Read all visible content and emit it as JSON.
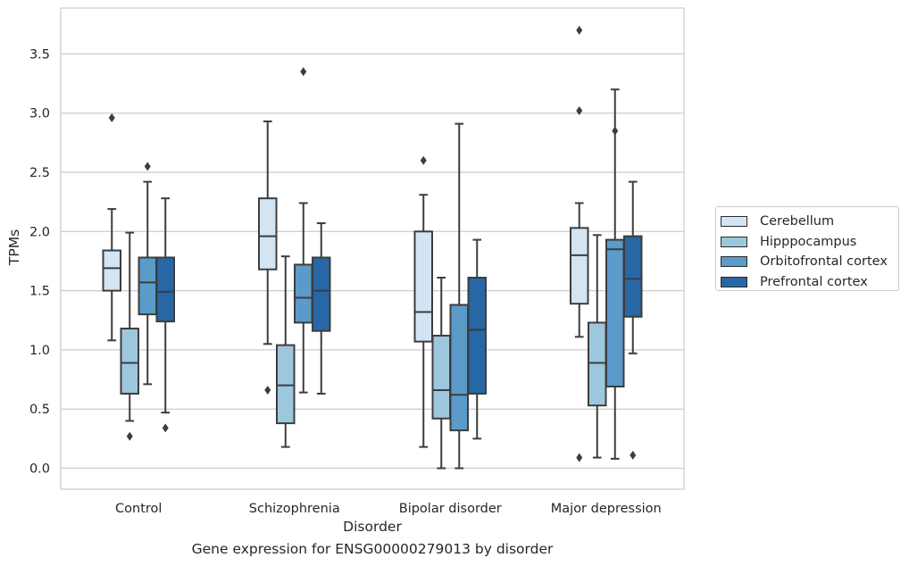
{
  "chart_data": {
    "type": "boxplot",
    "xlabel": "Disorder",
    "ylabel": "TPMs",
    "caption": "Gene expression for ENSG00000279013 by disorder",
    "categories": [
      "Control",
      "Schizophrenia",
      "Bipolar disorder",
      "Major depression"
    ],
    "ylim": [
      -0.18,
      3.9
    ],
    "yticks": [
      0.0,
      0.5,
      1.0,
      1.5,
      2.0,
      2.5,
      3.0,
      3.5
    ],
    "ytick_labels": [
      "0.0",
      "0.5",
      "1.0",
      "1.5",
      "2.0",
      "2.5",
      "3.0",
      "3.5"
    ],
    "grid": "horizontal",
    "legend_position": "right",
    "series": [
      {
        "name": "Cerebellum",
        "color": "#d3e4f3",
        "boxes": [
          {
            "whislo": 1.08,
            "q1": 1.5,
            "med": 1.69,
            "q3": 1.84,
            "whishi": 2.19,
            "fliers": [
              2.96
            ]
          },
          {
            "whislo": 1.05,
            "q1": 1.68,
            "med": 1.96,
            "q3": 2.28,
            "whishi": 2.93,
            "fliers": [
              0.66
            ]
          },
          {
            "whislo": 0.18,
            "q1": 1.07,
            "med": 1.32,
            "q3": 2.0,
            "whishi": 2.31,
            "fliers": [
              2.6
            ]
          },
          {
            "whislo": 1.11,
            "q1": 1.39,
            "med": 1.8,
            "q3": 2.03,
            "whishi": 2.24,
            "fliers": [
              3.02,
              3.7,
              0.09
            ]
          }
        ]
      },
      {
        "name": "Hipppocampus",
        "color": "#9dc7df",
        "boxes": [
          {
            "whislo": 0.4,
            "q1": 0.63,
            "med": 0.89,
            "q3": 1.18,
            "whishi": 1.99,
            "fliers": [
              0.27
            ]
          },
          {
            "whislo": 0.18,
            "q1": 0.38,
            "med": 0.7,
            "q3": 1.04,
            "whishi": 1.79,
            "fliers": []
          },
          {
            "whislo": 0.0,
            "q1": 0.42,
            "med": 0.66,
            "q3": 1.12,
            "whishi": 1.61,
            "fliers": []
          },
          {
            "whislo": 0.09,
            "q1": 0.53,
            "med": 0.89,
            "q3": 1.23,
            "whishi": 1.97,
            "fliers": []
          }
        ]
      },
      {
        "name": "Orbitofrontal cortex",
        "color": "#5a9bc9",
        "boxes": [
          {
            "whislo": 0.71,
            "q1": 1.3,
            "med": 1.57,
            "q3": 1.78,
            "whishi": 2.42,
            "fliers": [
              2.55
            ]
          },
          {
            "whislo": 0.64,
            "q1": 1.23,
            "med": 1.44,
            "q3": 1.72,
            "whishi": 2.24,
            "fliers": [
              3.35
            ]
          },
          {
            "whislo": 0.0,
            "q1": 0.32,
            "med": 0.62,
            "q3": 1.38,
            "whishi": 2.91,
            "fliers": []
          },
          {
            "whislo": 0.08,
            "q1": 0.69,
            "med": 1.85,
            "q3": 1.93,
            "whishi": 3.2,
            "fliers": [
              2.85
            ]
          }
        ]
      },
      {
        "name": "Prefrontal cortex",
        "color": "#2767a6",
        "boxes": [
          {
            "whislo": 0.47,
            "q1": 1.24,
            "med": 1.49,
            "q3": 1.78,
            "whishi": 2.28,
            "fliers": [
              0.34
            ]
          },
          {
            "whislo": 0.63,
            "q1": 1.16,
            "med": 1.5,
            "q3": 1.78,
            "whishi": 2.07,
            "fliers": []
          },
          {
            "whislo": 0.25,
            "q1": 0.63,
            "med": 1.17,
            "q3": 1.61,
            "whishi": 1.93,
            "fliers": []
          },
          {
            "whislo": 0.97,
            "q1": 1.28,
            "med": 1.6,
            "q3": 1.96,
            "whishi": 2.42,
            "fliers": [
              0.11
            ]
          }
        ]
      }
    ]
  }
}
